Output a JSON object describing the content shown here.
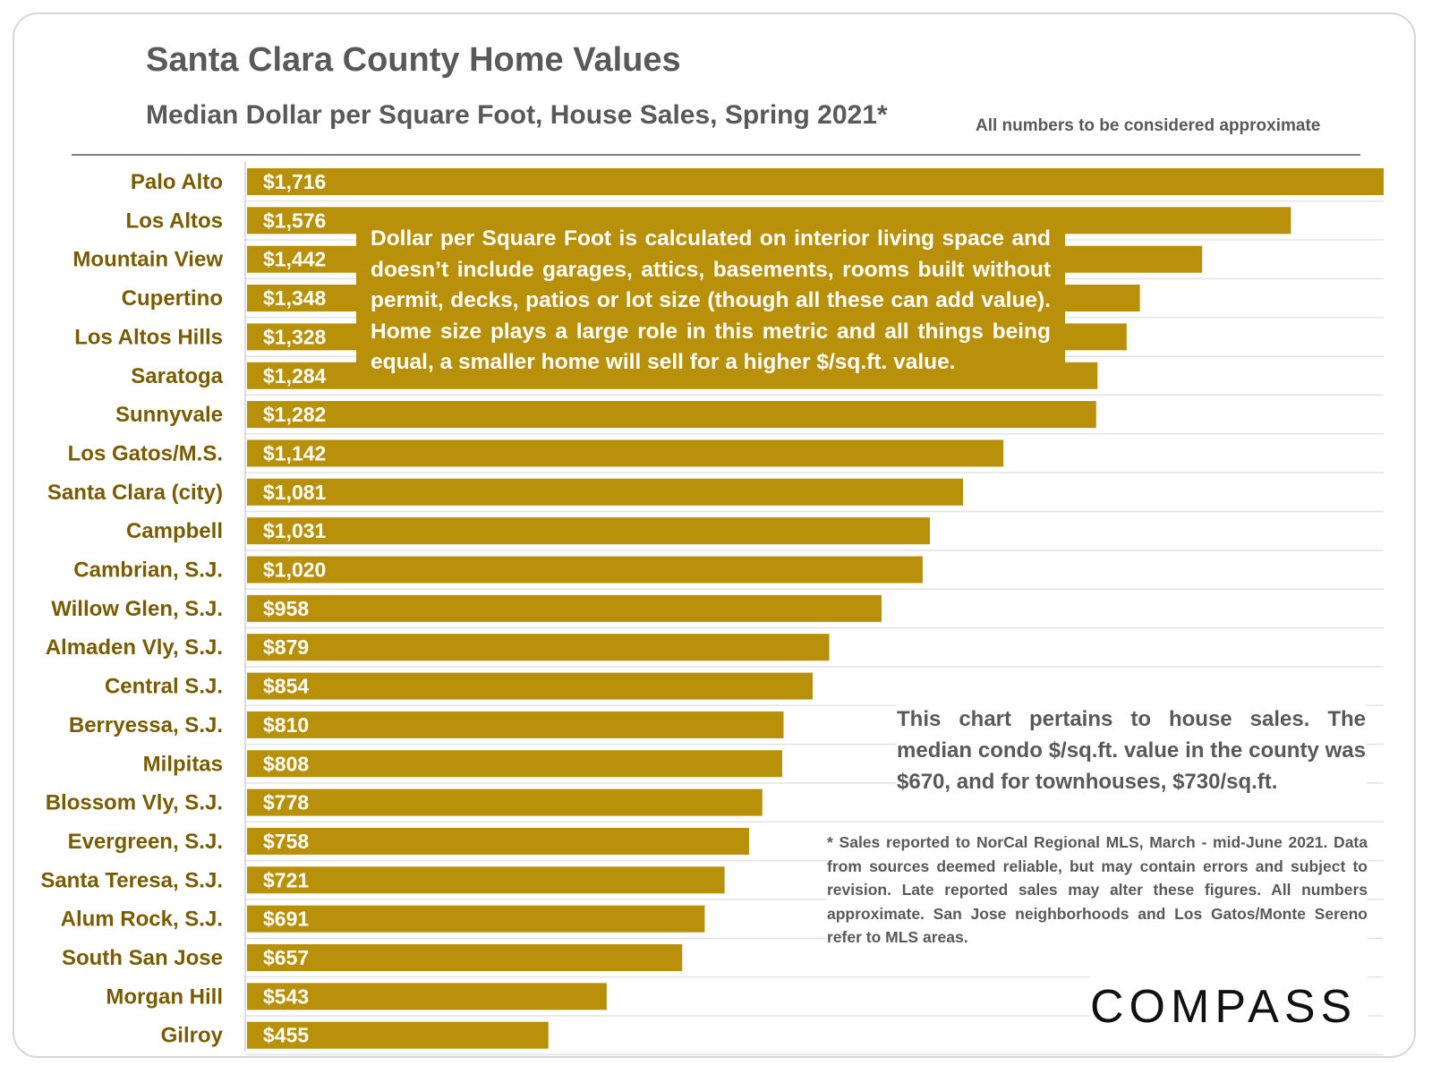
{
  "header": {
    "title": "Santa Clara County Home Values",
    "subtitle": "Median Dollar per Square Foot, House Sales, Spring 2021*",
    "approx_note": "All numbers to be considered approximate"
  },
  "notes": {
    "definition": "Dollar per Square Foot is calculated on interior living space and doesn’t include garages, attics, basements, rooms built without permit, decks, patios or lot size (though all these can add value). Home size plays a large role in this metric and all things being equal, a smaller home will sell for a higher $/sq.ft. value.",
    "condo": "This chart pertains to house sales. The median condo $/sq.ft. value in the county was $670, and for townhouses, $730/sq.ft.",
    "footnote": "* Sales reported to NorCal Regional MLS, March - mid-June 2021. Data from sources deemed reliable, but may contain errors and subject to revision. Late reported sales may alter these figures. All numbers approximate. San Jose neighborhoods and Los Gatos/Monte Sereno refer to MLS areas."
  },
  "logo": {
    "text": "COMPASS"
  },
  "colors": {
    "bar": "#b8900a",
    "label": "#7a5c00",
    "text": "#595959",
    "grid": "#e3e3e3"
  },
  "chart_data": {
    "type": "bar",
    "orientation": "horizontal",
    "title": "Santa Clara County Home Values",
    "subtitle": "Median Dollar per Square Foot, House Sales, Spring 2021*",
    "xlabel": "",
    "ylabel": "",
    "xlim": [
      0,
      1716
    ],
    "categories": [
      "Palo Alto",
      "Los Altos",
      "Mountain View",
      "Cupertino",
      "Los Altos Hills",
      "Saratoga",
      "Sunnyvale",
      "Los Gatos/M.S.",
      "Santa Clara (city)",
      "Campbell",
      "Cambrian, S.J.",
      "Willow Glen, S.J.",
      "Almaden Vly, S.J.",
      "Central S.J.",
      "Berryessa, S.J.",
      "Milpitas",
      "Blossom Vly, S.J.",
      "Evergreen, S.J.",
      "Santa Teresa, S.J.",
      "Alum Rock, S.J.",
      "South San Jose",
      "Morgan Hill",
      "Gilroy"
    ],
    "values": [
      1716,
      1576,
      1442,
      1348,
      1328,
      1284,
      1282,
      1142,
      1081,
      1031,
      1020,
      958,
      879,
      854,
      810,
      808,
      778,
      758,
      721,
      691,
      657,
      543,
      455
    ],
    "value_labels": [
      "$1,716",
      "$1,576",
      "$1,442",
      "$1,348",
      "$1,328",
      "$1,284",
      "$1,282",
      "$1,142",
      "$1,081",
      "$1,031",
      "$1,020",
      "$958",
      "$879",
      "$854",
      "$810",
      "$808",
      "$778",
      "$758",
      "$721",
      "$691",
      "$657",
      "$543",
      "$455"
    ],
    "legend": "none"
  }
}
